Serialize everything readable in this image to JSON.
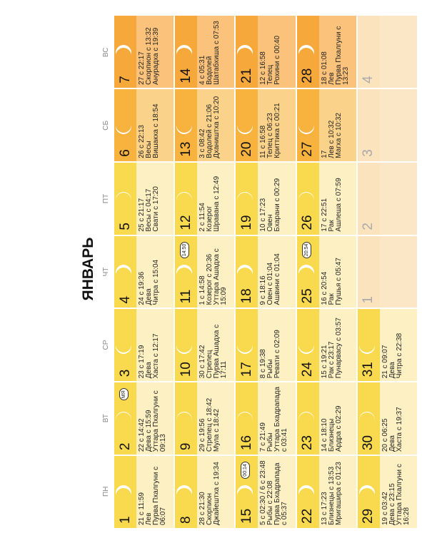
{
  "title": "ЯНВАРЬ",
  "weekdays": [
    "ПН",
    "ВТ",
    "СР",
    "ЧТ",
    "ПТ",
    "СБ",
    "ВС"
  ],
  "weeks": [
    [
      {
        "date": "1",
        "lines": [
          "21 с 11:59",
          "Лев",
          "Пурва Пхалгуни с 06:07"
        ]
      },
      {
        "date": "2",
        "lines": [
          "22 с 14:42",
          "Дева с 15:59",
          "Уттара Пхалгуни с 09:13"
        ],
        "badge": "МЯ"
      },
      {
        "date": "3",
        "lines": [
          "23 с 17:19",
          "Дева",
          "Хаста с 12:17"
        ]
      },
      {
        "date": "4",
        "lines": [
          "24 с 19:36",
          "Дева",
          "Читра с 15:04"
        ]
      },
      {
        "date": "5",
        "lines": [
          "25 с 21:17",
          "Весы с 04:17",
          "Свати с 17:20"
        ]
      },
      {
        "date": "6",
        "lines": [
          "26 с 22:13",
          "Весы",
          "Вишакха с 18:54"
        ]
      },
      {
        "date": "7",
        "lines": [
          "27 с 22:17",
          "Скорпион с 13:32",
          "Анурадха с 19:39"
        ]
      }
    ],
    [
      {
        "date": "8",
        "lines": [
          "28 с 21:30",
          "Скорпион",
          "Джайештха с 19:34"
        ]
      },
      {
        "date": "9",
        "lines": [
          "29 с 19:56",
          "Стрелец с 18:42",
          "Мула с 18:42"
        ]
      },
      {
        "date": "10",
        "lines": [
          "30 с 17:42",
          "Стрелец",
          "Пурва Ашадха с 17:11"
        ]
      },
      {
        "date": "11",
        "lines": [
          "1 с 14:58",
          "Козерог с 20:36",
          "Уттара Ашадха с 15:09"
        ],
        "badge": "14:50"
      },
      {
        "date": "12",
        "lines": [
          "2 с 11:54",
          "Козерог",
          "Шравана с 12:49"
        ]
      },
      {
        "date": "13",
        "lines": [
          "3 с 08:42",
          "Водолей с 21:06",
          "Дхаништха с 10:20"
        ]
      },
      {
        "date": "14",
        "lines": [
          "4 с 05:31",
          "Водолей",
          "Шатабхиша с 07:53"
        ]
      }
    ],
    [
      {
        "date": "15",
        "lines": [
          "5 с 02:30 / 6 с 23:48",
          "Рыбы с 22:08",
          "Пурва Бхадрапада с 05:37"
        ],
        "badge": "00:14"
      },
      {
        "date": "16",
        "lines": [
          "7 с 21:49",
          "Рыбы",
          "Уттара Бхадрапада с 03:41"
        ]
      },
      {
        "date": "17",
        "lines": [
          "8 с 19:38",
          "Рыбы",
          "Ревати с 02:09"
        ]
      },
      {
        "date": "18",
        "lines": [
          "9 с 18:16",
          "Овен с 01:04",
          "Ашвини с 01:04"
        ]
      },
      {
        "date": "19",
        "lines": [
          "10 с 17:23",
          "Овен",
          "Бхарани с 00:29"
        ]
      },
      {
        "date": "20",
        "lines": [
          "11 с 16:58",
          "Телец с 06:23",
          "Криттика с 00:21"
        ]
      },
      {
        "date": "21",
        "lines": [
          "12 с 16:58",
          "Телец",
          "Рохини с 00:40"
        ]
      }
    ],
    [
      {
        "date": "22",
        "lines": [
          "13 с 17:23",
          "Близнецы с 13:53",
          "Мригашира с 01:23"
        ]
      },
      {
        "date": "23",
        "lines": [
          "14 с 18:10",
          "Близнецы",
          "Ардра с 02:29"
        ]
      },
      {
        "date": "24",
        "lines": [
          "15 с 19:21",
          "Рак с 23:17",
          "Пунарвасу с 03:57"
        ]
      },
      {
        "date": "25",
        "lines": [
          "16 с 20:54",
          "Рак",
          "Пушья с 05:47"
        ],
        "badge": "20:54"
      },
      {
        "date": "26",
        "lines": [
          "17 с 22:51",
          "Рак",
          "Ашлеша с 07:59"
        ]
      },
      {
        "date": "27",
        "lines": [
          "17",
          "Лев с 10:32",
          "Магха с 10:32"
        ]
      },
      {
        "date": "28",
        "lines": [
          "18 с 01:08",
          "Лев",
          "Пурва Пхалгуни с 13:23"
        ]
      }
    ],
    [
      {
        "date": "29",
        "lines": [
          "19 с 03:42",
          "Дева с 23:15",
          "Уттара Пхалгуни с 16:28"
        ]
      },
      {
        "date": "30",
        "lines": [
          "20 с 06:25",
          "Дева",
          "Хаста с 19:37"
        ]
      },
      {
        "date": "31",
        "lines": [
          "21 с 09:07",
          "Дева",
          "Читра с 22:38"
        ]
      },
      {
        "date": "1",
        "lines": []
      },
      {
        "date": "2",
        "lines": []
      },
      {
        "date": "3",
        "lines": []
      },
      {
        "date": "4",
        "lines": []
      }
    ]
  ]
}
